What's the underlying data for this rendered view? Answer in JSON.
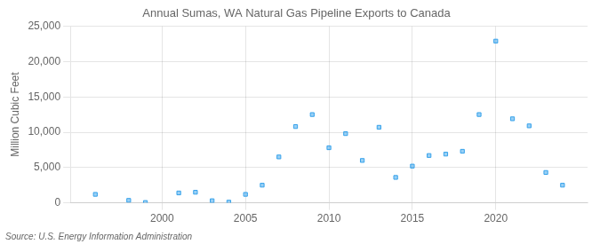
{
  "chart_data": {
    "type": "scatter",
    "title": "Annual Sumas, WA Natural Gas Pipeline Exports to Canada",
    "ylabel": "Million Cubic Feet",
    "source": "Source: U.S. Energy Information Administration",
    "x": [
      1996,
      1998,
      1999,
      2001,
      2002,
      2003,
      2004,
      2005,
      2006,
      2007,
      2008,
      2009,
      2010,
      2011,
      2012,
      2013,
      2014,
      2015,
      2016,
      2017,
      2018,
      2019,
      2020,
      2021,
      2022,
      2023,
      2024
    ],
    "values": [
      1200,
      350,
      50,
      1400,
      1500,
      300,
      100,
      1200,
      2500,
      6500,
      10800,
      12500,
      7800,
      9800,
      6000,
      10700,
      3600,
      5200,
      6700,
      6900,
      7300,
      12500,
      22900,
      11900,
      10900,
      4300,
      2500
    ],
    "xlim": [
      1994.5,
      2025.5
    ],
    "xticks": [
      2000,
      2005,
      2010,
      2015,
      2020
    ],
    "ylim": [
      0,
      25000
    ],
    "yticks": [
      0,
      {
        "value": 5000,
        "label": "5,000"
      },
      {
        "value": 10000,
        "label": "10,000"
      },
      {
        "value": 15000,
        "label": "15,000"
      },
      {
        "value": 20000,
        "label": "20,000"
      },
      {
        "value": 25000,
        "label": "25,000"
      }
    ],
    "grid": true,
    "marker": "square"
  }
}
